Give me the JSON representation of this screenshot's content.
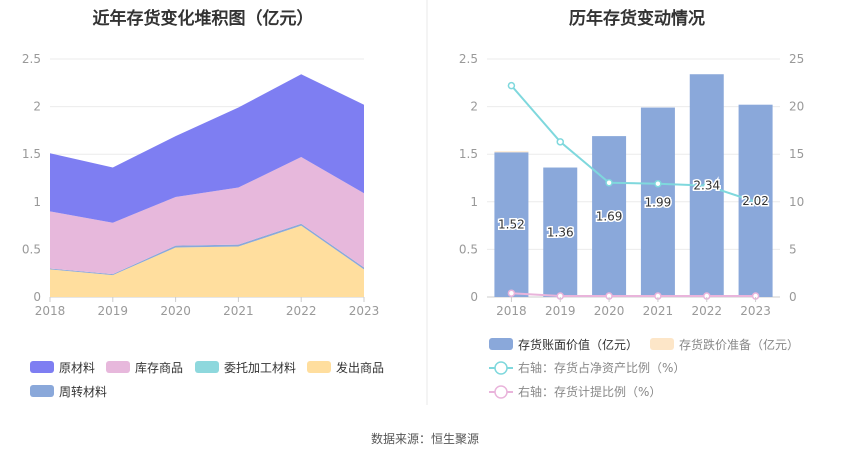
{
  "source_label": "数据来源：恒生聚源",
  "colors": {
    "raw_material": "#7E7EF2",
    "inventory_goods": "#E7B8DC",
    "consigned_material": "#8ED8DD",
    "shipped_goods": "#FFDE9E",
    "turnover_material": "#8AA8DA",
    "bar": "#8AA8DA",
    "bar_provision": "#FDE6C8",
    "line_ratio": "#7FD8DD",
    "line_provision": "#E9B4DB",
    "grid": "#EBEBEB",
    "axis": "#CCCCCC",
    "divider": "#E8E8E8"
  },
  "chart_data": [
    {
      "type": "area",
      "stacked": true,
      "title": "近年存货变化堆积图（亿元）",
      "x": [
        "2018",
        "2019",
        "2020",
        "2021",
        "2022",
        "2023"
      ],
      "ylim": [
        0,
        2.5
      ],
      "yticks": [
        "0",
        "0.5",
        "1",
        "1.5",
        "2",
        "2.5"
      ],
      "grid": true,
      "legend_position": "bottom",
      "series": [
        {
          "name": "原材料",
          "color": "#7E7EF2",
          "values": [
            0.61,
            0.58,
            0.64,
            0.84,
            0.87,
            0.93
          ]
        },
        {
          "name": "库存商品",
          "color": "#E7B8DC",
          "values": [
            0.6,
            0.54,
            0.51,
            0.6,
            0.7,
            0.78
          ]
        },
        {
          "name": "委托加工材料",
          "color": "#8ED8DD",
          "values": [
            0.0,
            0.0,
            0.0,
            0.0,
            0.0,
            0.0
          ]
        },
        {
          "name": "发出商品",
          "color": "#FFDE9E",
          "values": [
            0.29,
            0.23,
            0.52,
            0.53,
            0.75,
            0.29
          ]
        },
        {
          "name": "周转材料",
          "color": "#8AA8DA",
          "values": [
            0.01,
            0.01,
            0.02,
            0.02,
            0.02,
            0.02
          ]
        }
      ]
    },
    {
      "type": "bar",
      "title": "历年存货变动情况",
      "categories": [
        "2018",
        "2019",
        "2020",
        "2021",
        "2022",
        "2023"
      ],
      "ylim": [
        0,
        2.5
      ],
      "yticks": [
        "0",
        "0.5",
        "1",
        "1.5",
        "2",
        "2.5"
      ],
      "y2lim": [
        0,
        25
      ],
      "y2ticks": [
        "0",
        "5",
        "10",
        "15",
        "20",
        "25"
      ],
      "grid": true,
      "legend_position": "bottom",
      "series": [
        {
          "name": "存货账面价值（亿元）",
          "kind": "bar",
          "axis": "left",
          "color": "#8AA8DA",
          "values": [
            1.52,
            1.36,
            1.69,
            1.99,
            2.34,
            2.02
          ],
          "labels": [
            "1.52",
            "1.36",
            "1.69",
            "1.99",
            "2.34",
            "2.02"
          ]
        },
        {
          "name": "存货跌价准备（亿元）",
          "kind": "bar",
          "axis": "left",
          "color": "#FDE6C8",
          "values": [
            0.01,
            0.0,
            0.0,
            0.0,
            0.0,
            0.0
          ]
        },
        {
          "name": "右轴：存货占净资产比例（%）",
          "kind": "line",
          "axis": "right",
          "color": "#7FD8DD",
          "values": [
            22.2,
            16.3,
            12.0,
            11.9,
            11.7,
            10.0
          ]
        },
        {
          "name": "右轴：存货计提比例（%）",
          "kind": "line",
          "axis": "right",
          "color": "#E9B4DB",
          "values": [
            0.4,
            0.1,
            0.1,
            0.1,
            0.1,
            0.1
          ]
        }
      ]
    }
  ]
}
